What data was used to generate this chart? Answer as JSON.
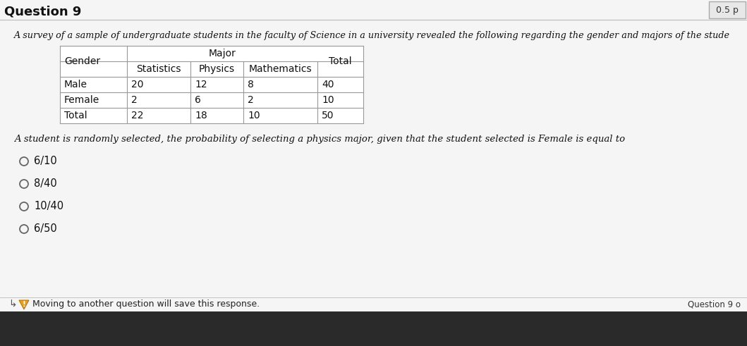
{
  "title_question": "Question 9",
  "score_badge": "0.5 p",
  "intro_text": "A survey of a sample of undergraduate students in the faculty of Science in a university revealed the following regarding the gender and majors of the stude",
  "table": {
    "merged_header": "Major",
    "sub_headers": [
      "Statistics",
      "Physics",
      "Mathematics"
    ],
    "gender_header": "Gender",
    "total_header": "Total",
    "rows": [
      [
        "Male",
        "20",
        "12",
        "8",
        "40"
      ],
      [
        "Female",
        "2",
        "6",
        "2",
        "10"
      ],
      [
        "Total",
        "22",
        "18",
        "10",
        "50"
      ]
    ]
  },
  "question_text": "A student is randomly selected, the probability of selecting a physics major, given that the student selected is Female is equal to",
  "options": [
    "6/10",
    "8/40",
    "10/40",
    "6/50"
  ],
  "footer_text": "Moving to another question will save this response.",
  "footer_note": "Question 9 o",
  "bg_main": "#c8c8c8",
  "bg_content": "#e0e0e0",
  "bg_white": "#f5f5f5",
  "table_bg": "#ffffff",
  "table_border": "#999999",
  "text_color": "#111111",
  "score_bg": "#e8e8e8",
  "taskbar_bg": "#2a2a2a",
  "footer_sep_color": "#bbbbbb"
}
